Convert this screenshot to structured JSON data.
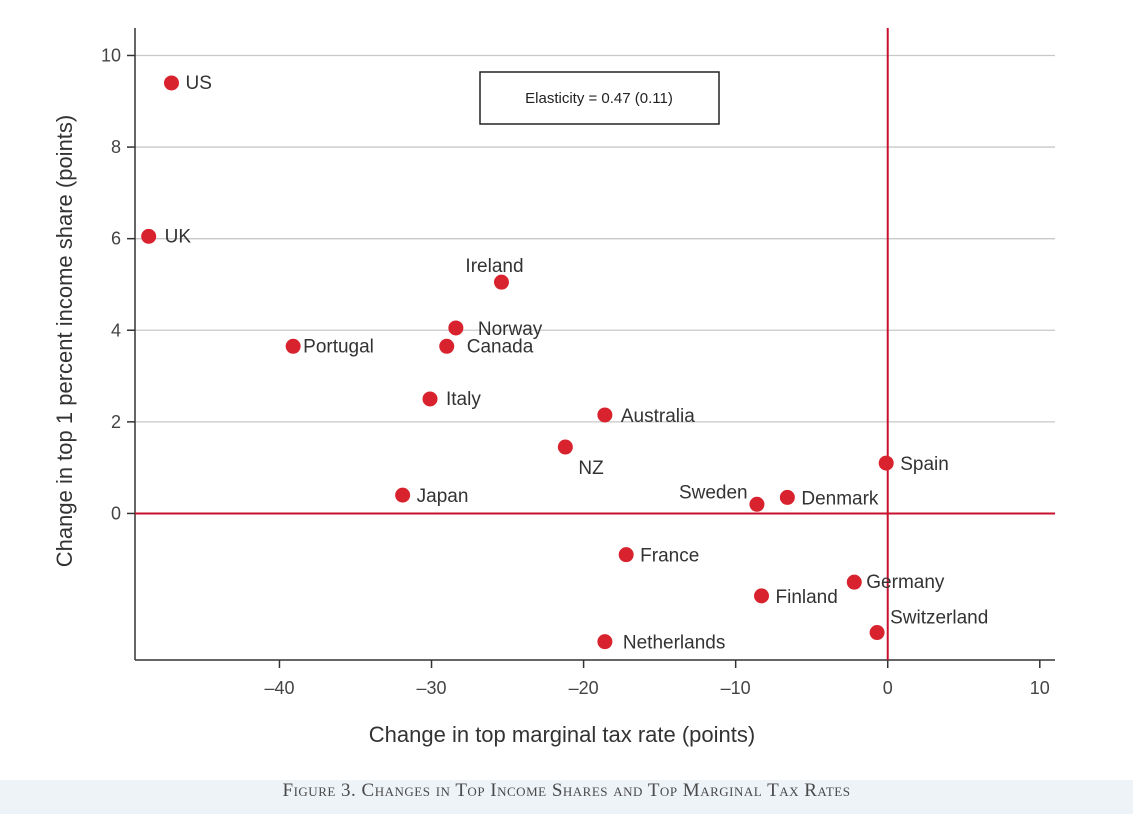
{
  "caption": "Figure 3. Changes in Top Income Shares and Top Marginal Tax Rates",
  "colors": {
    "point": "#d8232e",
    "refline": "#c8102e",
    "grid": "#c8c8c8",
    "axis": "#333333"
  },
  "chart_data": {
    "type": "scatter",
    "title": "",
    "xlabel": "Change in top marginal tax rate (points)",
    "ylabel": "Change in top 1 percent income share (points)",
    "xlim": [
      -49.5,
      11
    ],
    "ylim": [
      -3.2,
      10.6
    ],
    "xticks": [
      -40,
      -30,
      -20,
      -10,
      0,
      10
    ],
    "xtick_labels": [
      "–40",
      "–30",
      "–20",
      "–10",
      "0",
      "10"
    ],
    "yticks": [
      0,
      2,
      4,
      6,
      8,
      10
    ],
    "ytick_labels": [
      "0",
      "2",
      "4",
      "6",
      "8",
      "10"
    ],
    "grid": "horizontal",
    "reference_lines": {
      "x": 0,
      "y": 0
    },
    "annotation": "Elasticity = 0.47 (0.11)",
    "points": [
      {
        "label": "US",
        "x": -47.1,
        "y": 9.4
      },
      {
        "label": "UK",
        "x": -48.6,
        "y": 6.05
      },
      {
        "label": "Ireland",
        "x": -25.4,
        "y": 5.05
      },
      {
        "label": "Norway",
        "x": -28.4,
        "y": 4.05
      },
      {
        "label": "Portugal",
        "x": -39.1,
        "y": 3.65
      },
      {
        "label": "Canada",
        "x": -29.0,
        "y": 3.65
      },
      {
        "label": "Italy",
        "x": -30.1,
        "y": 2.5
      },
      {
        "label": "Australia",
        "x": -18.6,
        "y": 2.15
      },
      {
        "label": "NZ",
        "x": -21.2,
        "y": 1.45
      },
      {
        "label": "Japan",
        "x": -31.9,
        "y": 0.4
      },
      {
        "label": "Spain",
        "x": -0.1,
        "y": 1.1
      },
      {
        "label": "Sweden",
        "x": -8.6,
        "y": 0.2
      },
      {
        "label": "Denmark",
        "x": -6.6,
        "y": 0.35
      },
      {
        "label": "France",
        "x": -17.2,
        "y": -0.9
      },
      {
        "label": "Germany",
        "x": -2.2,
        "y": -1.5
      },
      {
        "label": "Finland",
        "x": -8.3,
        "y": -1.8
      },
      {
        "label": "Switzerland",
        "x": -0.7,
        "y": -2.6
      },
      {
        "label": "Netherlands",
        "x": -18.6,
        "y": -2.8
      }
    ]
  }
}
